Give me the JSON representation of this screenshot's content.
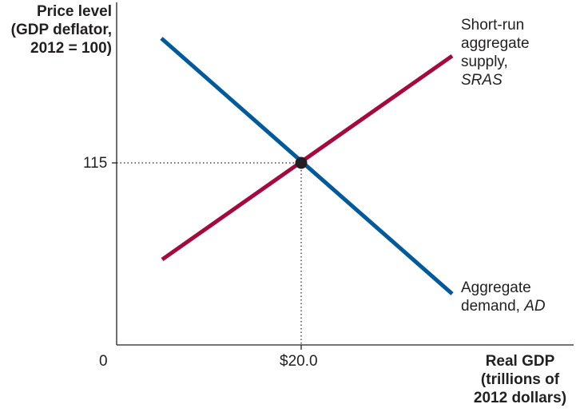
{
  "y_axis_title": [
    "Price level",
    "(GDP deflator,",
    "2012 = 100)"
  ],
  "x_axis_title": [
    "Real GDP",
    "(trillions of",
    "2012 dollars)"
  ],
  "origin_label": "0",
  "y_tick_label": "115",
  "x_tick_label": "$20.0",
  "sras_label": {
    "line1": "Short-run",
    "line2": "aggregate",
    "line3": "supply,",
    "abbr": "SRAS"
  },
  "ad_label": {
    "line1": "Aggregate",
    "line2_prefix": "demand, ",
    "abbr": "AD"
  },
  "colors": {
    "sras": "#a6093d",
    "ad": "#005a9c",
    "axis": "#231f20",
    "point": "#231f20"
  },
  "chart_data": {
    "type": "line",
    "equilibrium": {
      "x": 20.0,
      "y": 115
    },
    "x_ticks": [
      {
        "value": 20.0,
        "label": "$20.0"
      }
    ],
    "y_ticks": [
      {
        "value": 115,
        "label": "115"
      }
    ],
    "series": [
      {
        "name": "SRAS",
        "slope": "upward"
      },
      {
        "name": "AD",
        "slope": "downward"
      }
    ]
  }
}
